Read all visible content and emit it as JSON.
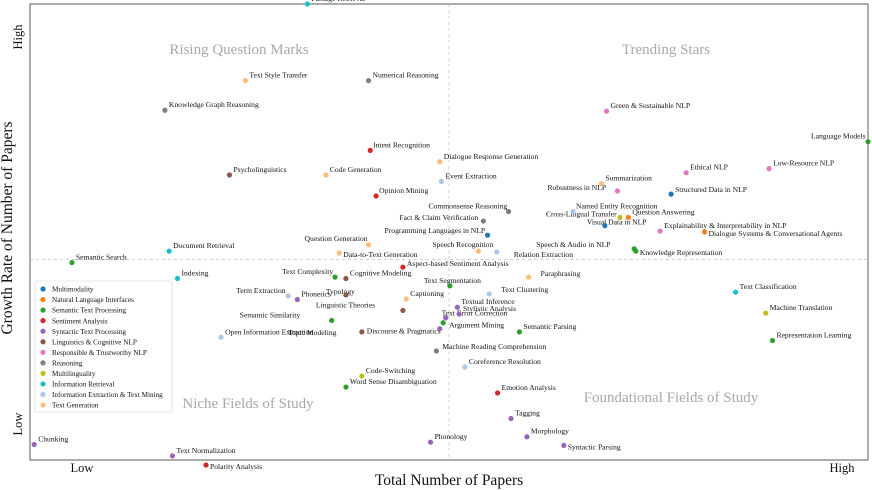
{
  "chart_data": {
    "type": "scatter",
    "xlabel": "Total Number of Papers",
    "ylabel": "Growth Rate of Number of Papers",
    "xlim": [
      0,
      100
    ],
    "ylim": [
      0,
      100
    ],
    "x_tick_labels": [
      "Low",
      "High"
    ],
    "y_tick_labels": [
      "Low",
      "High"
    ],
    "grid": false,
    "legend_position": "lower-left",
    "reference_lines": "dashed median lines at x=50 and y=44",
    "quadrant_labels": {
      "top_left": "Rising Question Marks",
      "top_right": "Trending Stars",
      "bottom_left": "Niche Fields of Study",
      "bottom_right": "Foundational Fields of Study"
    },
    "series": [
      {
        "name": "Multimodality",
        "color": "#1f77b4"
      },
      {
        "name": "Natural Language Interfaces",
        "color": "#ff7f0e"
      },
      {
        "name": "Semantic Text Processing",
        "color": "#2ca02c"
      },
      {
        "name": "Sentiment Analysis",
        "color": "#d62728"
      },
      {
        "name": "Syntactic Text Processing",
        "color": "#9467bd"
      },
      {
        "name": "Linguistics & Cognitive NLP",
        "color": "#8c564b"
      },
      {
        "name": "Responsible & Trustworthy NLP",
        "color": "#e377c2"
      },
      {
        "name": "Reasoning",
        "color": "#7f7f7f"
      },
      {
        "name": "Multilinguality",
        "color": "#bcbd22"
      },
      {
        "name": "Information Retrieval",
        "color": "#17becf"
      },
      {
        "name": "Information Extraction & Text Mining",
        "color": "#aec7e8"
      },
      {
        "name": "Text Generation",
        "color": "#ffbb78"
      }
    ],
    "points": [
      {
        "label": "Passage Retrieval",
        "x": 33.1,
        "y": 100.0,
        "series": 9
      },
      {
        "label": "Text Style Transfer",
        "x": 25.7,
        "y": 83.2,
        "series": 11
      },
      {
        "label": "Numerical Reasoning",
        "x": 40.4,
        "y": 83.2,
        "series": 7
      },
      {
        "label": "Knowledge Graph Reasoning",
        "x": 16.1,
        "y": 76.7,
        "series": 7
      },
      {
        "label": "Language Models",
        "x": 100.0,
        "y": 69.8,
        "series": 2
      },
      {
        "label": "Green & Sustainable NLP",
        "x": 68.8,
        "y": 76.5,
        "series": 6
      },
      {
        "label": "Intent Recognition",
        "x": 40.6,
        "y": 67.9,
        "series": 3
      },
      {
        "label": "Dialogue Response Generation",
        "x": 48.9,
        "y": 65.4,
        "series": 11
      },
      {
        "label": "Psycholinguistics",
        "x": 23.8,
        "y": 62.5,
        "series": 5
      },
      {
        "label": "Code Generation",
        "x": 35.3,
        "y": 62.5,
        "series": 11
      },
      {
        "label": "Event Extraction",
        "x": 49.1,
        "y": 61.1,
        "series": 10
      },
      {
        "label": "Ethical NLP",
        "x": 78.3,
        "y": 63.0,
        "series": 6
      },
      {
        "label": "Low-Resource NLP",
        "x": 88.2,
        "y": 63.9,
        "series": 6
      },
      {
        "label": "Summarization",
        "x": 68.2,
        "y": 60.6,
        "series": 11
      },
      {
        "label": "Structured Data in NLP",
        "x": 76.5,
        "y": 58.3,
        "series": 0
      },
      {
        "label": "Robustness in NLP",
        "x": 70.1,
        "y": 59.0,
        "series": 6
      },
      {
        "label": "Opinion Mining",
        "x": 41.3,
        "y": 57.9,
        "series": 3
      },
      {
        "label": "Commonsense Reasoning",
        "x": 57.1,
        "y": 54.5,
        "series": 7
      },
      {
        "label": "Named Entity Recognition",
        "x": 64.8,
        "y": 54.5,
        "series": 10
      },
      {
        "label": "Question Answering",
        "x": 71.4,
        "y": 53.2,
        "series": 1
      },
      {
        "label": "Fact & Claim Verification",
        "x": 54.1,
        "y": 52.4,
        "series": 7
      },
      {
        "label": "Cross-Lingual Transfer",
        "x": 70.4,
        "y": 53.2,
        "series": 8
      },
      {
        "label": "Explainability & Interpretability in NLP",
        "x": 75.2,
        "y": 50.2,
        "series": 6
      },
      {
        "label": "Programming Languages in NLP",
        "x": 54.6,
        "y": 49.3,
        "series": 0
      },
      {
        "label": "Visual Data in NLP",
        "x": 68.6,
        "y": 51.4,
        "series": 0
      },
      {
        "label": "Dialogue Systems & Conversational Agents",
        "x": 80.5,
        "y": 50.0,
        "series": 1
      },
      {
        "label": "Question Generation",
        "x": 40.4,
        "y": 47.2,
        "series": 11
      },
      {
        "label": "Speech Recognition",
        "x": 53.5,
        "y": 45.8,
        "series": 11
      },
      {
        "label": "Document Retrieval",
        "x": 16.6,
        "y": 45.8,
        "series": 9
      },
      {
        "label": "Speech & Audio in NLP",
        "x": 72.1,
        "y": 46.3,
        "series": 2
      },
      {
        "label": "Knowledge Representation",
        "x": 72.3,
        "y": 45.8,
        "series": 2
      },
      {
        "label": "Data-to-Text Generation",
        "x": 36.9,
        "y": 45.4,
        "series": 11
      },
      {
        "label": "Relation Extraction",
        "x": 55.7,
        "y": 45.6,
        "series": 10
      },
      {
        "label": "Semantic Search",
        "x": 5.0,
        "y": 43.3,
        "series": 2
      },
      {
        "label": "Aspect-based Sentiment Analysis",
        "x": 44.5,
        "y": 42.3,
        "series": 3
      },
      {
        "label": "Paraphrasing",
        "x": 59.5,
        "y": 40.1,
        "series": 11
      },
      {
        "label": "Indexing",
        "x": 17.6,
        "y": 39.8,
        "series": 9
      },
      {
        "label": "Text Complexity",
        "x": 36.4,
        "y": 40.1,
        "series": 2
      },
      {
        "label": "Cognitive Modeling",
        "x": 37.7,
        "y": 39.8,
        "series": 5
      },
      {
        "label": "Text Segmentation",
        "x": 50.1,
        "y": 38.2,
        "series": 2
      },
      {
        "label": "Text Classification",
        "x": 84.2,
        "y": 36.8,
        "series": 9
      },
      {
        "label": "Term Extraction",
        "x": 30.8,
        "y": 36.0,
        "series": 10
      },
      {
        "label": "Phonetics",
        "x": 31.9,
        "y": 35.2,
        "series": 4
      },
      {
        "label": "Typology",
        "x": 37.7,
        "y": 36.2,
        "series": 5
      },
      {
        "label": "Captioning",
        "x": 44.9,
        "y": 35.3,
        "series": 11
      },
      {
        "label": "Text Clustering",
        "x": 54.8,
        "y": 36.4,
        "series": 10
      },
      {
        "label": "Textual Inference",
        "x": 51.0,
        "y": 33.5,
        "series": 4
      },
      {
        "label": "Linguistic Theories",
        "x": 44.5,
        "y": 32.8,
        "series": 5
      },
      {
        "label": "Machine Translation",
        "x": 87.8,
        "y": 32.2,
        "series": 8
      },
      {
        "label": "Stylistic Analysis",
        "x": 51.2,
        "y": 32.0,
        "series": 4
      },
      {
        "label": "Semantic Similarity",
        "x": 36.0,
        "y": 30.6,
        "series": 2
      },
      {
        "label": "Text Error Correction",
        "x": 49.6,
        "y": 31.2,
        "series": 4
      },
      {
        "label": "Argument Mining",
        "x": 49.3,
        "y": 30.1,
        "series": 2
      },
      {
        "label": "Open Information Extraction",
        "x": 22.8,
        "y": 26.9,
        "series": 10
      },
      {
        "label": "Topic Modeling",
        "x": 39.6,
        "y": 28.1,
        "series": 5
      },
      {
        "label": "Semantic Parsing",
        "x": 58.4,
        "y": 28.1,
        "series": 2
      },
      {
        "label": "Representation Learning",
        "x": 88.6,
        "y": 26.2,
        "series": 2
      },
      {
        "label": "Discourse & Pragmatics",
        "x": 48.9,
        "y": 28.8,
        "series": 4
      },
      {
        "label": "Machine Reading Comprehension",
        "x": 48.5,
        "y": 23.9,
        "series": 7
      },
      {
        "label": "Coreference Resolution",
        "x": 51.9,
        "y": 20.4,
        "series": 10
      },
      {
        "label": "Code-Switching",
        "x": 39.6,
        "y": 18.4,
        "series": 8
      },
      {
        "label": "Word Sense Disambiguation",
        "x": 37.7,
        "y": 16.0,
        "series": 2
      },
      {
        "label": "Emotion Analysis",
        "x": 55.8,
        "y": 14.7,
        "series": 3
      },
      {
        "label": "Tagging",
        "x": 57.4,
        "y": 9.1,
        "series": 4
      },
      {
        "label": "Morphology",
        "x": 59.3,
        "y": 5.1,
        "series": 4
      },
      {
        "label": "Phonology",
        "x": 47.8,
        "y": 3.9,
        "series": 4
      },
      {
        "label": "Syntactic Parsing",
        "x": 63.7,
        "y": 3.2,
        "series": 4
      },
      {
        "label": "Chunking",
        "x": 0.5,
        "y": 3.4,
        "series": 4
      },
      {
        "label": "Text Normalization",
        "x": 17.0,
        "y": 0.9,
        "series": 4
      },
      {
        "label": "Polarity Analysis",
        "x": 21.0,
        "y": -1.1,
        "series": 3
      }
    ]
  }
}
